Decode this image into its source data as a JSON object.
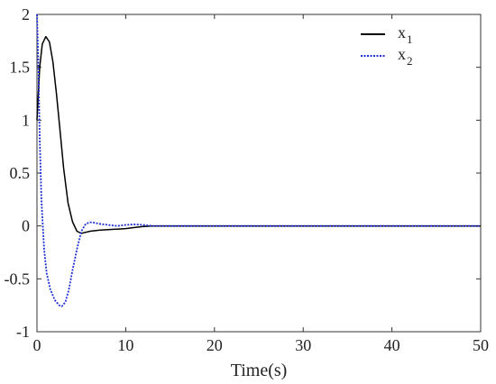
{
  "chart_data": {
    "type": "line",
    "title": "",
    "xlabel": "Time(s)",
    "ylabel": "",
    "xlim": [
      0,
      50
    ],
    "ylim": [
      -1,
      2
    ],
    "xticks": [
      "0",
      "10",
      "20",
      "30",
      "40",
      "50"
    ],
    "yticks": [
      "2",
      "1.5",
      "1",
      "0.5",
      "0",
      "-0.5",
      "-1"
    ],
    "grid": false,
    "legend_position": "top-right",
    "series": [
      {
        "name": "x",
        "name_subscript": "1",
        "color": "#000000",
        "style": "solid",
        "x": [
          0,
          0.3,
          0.6,
          1.0,
          1.4,
          1.8,
          2.2,
          2.6,
          3.0,
          3.5,
          4.0,
          4.5,
          5.0,
          5.5,
          6.0,
          7.0,
          8.0,
          9.0,
          10.0,
          11.0,
          12.0,
          13.0,
          15.0,
          20.0,
          30.0,
          40.0,
          50.0
        ],
        "y": [
          1.0,
          1.5,
          1.72,
          1.79,
          1.74,
          1.55,
          1.25,
          0.9,
          0.55,
          0.22,
          0.04,
          -0.05,
          -0.07,
          -0.06,
          -0.05,
          -0.04,
          -0.035,
          -0.03,
          -0.025,
          -0.015,
          -0.005,
          0.0,
          0.0,
          0.0,
          0.0,
          0.0,
          0.0
        ]
      },
      {
        "name": "x",
        "name_subscript": "2",
        "color": "#1f2fd6",
        "style": "dotted",
        "x": [
          0,
          0.15,
          0.3,
          0.5,
          0.8,
          1.1,
          1.5,
          2.0,
          2.5,
          2.8,
          3.2,
          3.6,
          4.0,
          4.5,
          5.0,
          5.5,
          6.0,
          6.5,
          7.0,
          8.0,
          9.0,
          10.0,
          11.0,
          12.0,
          13.0,
          15.0,
          20.0,
          30.0,
          40.0,
          50.0
        ],
        "y": [
          2.0,
          1.55,
          0.85,
          0.25,
          -0.22,
          -0.45,
          -0.6,
          -0.7,
          -0.75,
          -0.76,
          -0.72,
          -0.6,
          -0.42,
          -0.22,
          -0.05,
          0.02,
          0.035,
          0.03,
          0.02,
          0.01,
          0.0,
          0.01,
          0.015,
          0.01,
          0.0,
          0.0,
          0.0,
          0.0,
          0.0,
          0.0
        ]
      }
    ]
  }
}
